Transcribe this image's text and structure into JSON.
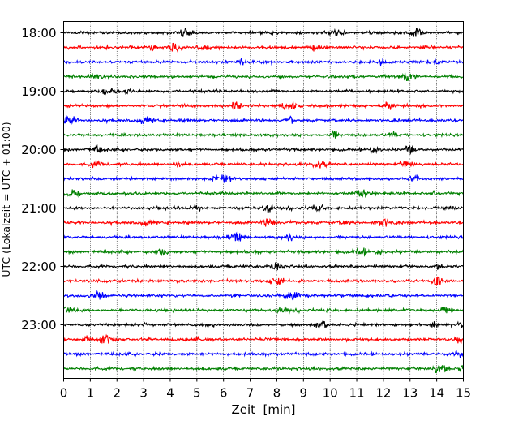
{
  "chart_data": {
    "type": "line",
    "subtype": "helicorder",
    "xlabel": "Zeit  [min]",
    "ylabel": "UTC (Lokalzeit = UTC + 01:00)",
    "xlim": [
      0,
      15
    ],
    "x_ticks": [
      "0",
      "1",
      "2",
      "3",
      "4",
      "5",
      "6",
      "7",
      "8",
      "9",
      "10",
      "11",
      "12",
      "13",
      "14",
      "15"
    ],
    "y_ticks": [
      "18:00",
      "19:00",
      "20:00",
      "21:00",
      "22:00",
      "23:00"
    ],
    "trace_minutes": 15,
    "trace_start_times": [
      "18:00",
      "18:15",
      "18:30",
      "18:45",
      "19:00",
      "19:15",
      "19:30",
      "19:45",
      "20:00",
      "20:15",
      "20:30",
      "20:45",
      "21:00",
      "21:15",
      "21:30",
      "21:45",
      "22:00",
      "22:15",
      "22:30",
      "22:45",
      "23:00",
      "23:15",
      "23:30",
      "23:45"
    ],
    "color_cycle": [
      "#000000",
      "#ff0000",
      "#0000ff",
      "#008000"
    ],
    "grid": {
      "x": true,
      "y": false,
      "style": "dotted"
    },
    "legend": "none"
  }
}
